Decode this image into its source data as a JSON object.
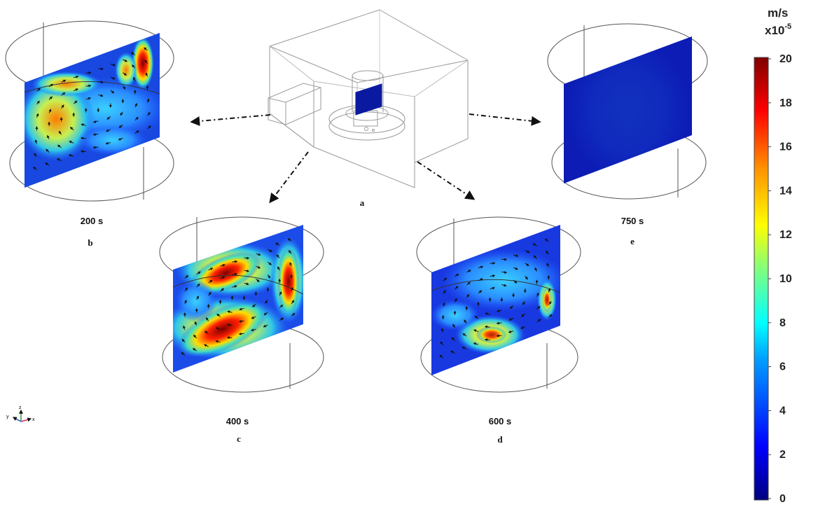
{
  "panels": [
    {
      "id": "a",
      "letter": "a"
    },
    {
      "id": "b",
      "letter": "b",
      "time": "200 s"
    },
    {
      "id": "c",
      "letter": "c",
      "time": "400 s"
    },
    {
      "id": "d",
      "letter": "d",
      "time": "600 s"
    },
    {
      "id": "e",
      "letter": "e",
      "time": "750 s"
    }
  ],
  "colorbar": {
    "unit_line1": "m/s",
    "unit_line2": "x10",
    "unit_exp": "-5",
    "ticks": [
      "20",
      "18",
      "16",
      "14",
      "12",
      "10",
      "8",
      "6",
      "4",
      "2",
      "0"
    ],
    "colors": [
      "#00007f",
      "#0000ff",
      "#00a0ff",
      "#00ffff",
      "#7fff7f",
      "#ffff00",
      "#ff9000",
      "#ff0000",
      "#7f0000"
    ]
  },
  "triad": {
    "x": "x",
    "y": "y",
    "z": "z"
  }
}
